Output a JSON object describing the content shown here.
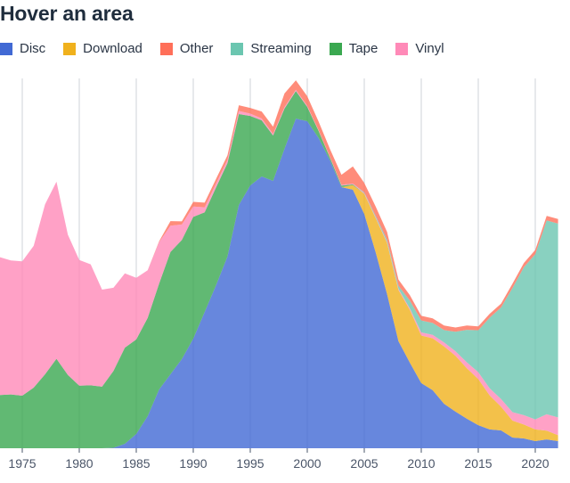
{
  "header": {
    "title": "Hover an area"
  },
  "chart_data": {
    "type": "area",
    "stacked": true,
    "title": "",
    "xlabel": "",
    "ylabel": "",
    "x": [
      1973,
      1974,
      1975,
      1976,
      1977,
      1978,
      1979,
      1980,
      1981,
      1982,
      1983,
      1984,
      1985,
      1986,
      1987,
      1988,
      1989,
      1990,
      1991,
      1992,
      1993,
      1994,
      1995,
      1996,
      1997,
      1998,
      1999,
      2000,
      2001,
      2002,
      2003,
      2004,
      2005,
      2006,
      2007,
      2008,
      2009,
      2010,
      2011,
      2012,
      2013,
      2014,
      2015,
      2016,
      2017,
      2018,
      2019,
      2020,
      2021,
      2022
    ],
    "xticks": [
      "1975",
      "1980",
      "1985",
      "1990",
      "1995",
      "2000",
      "2005",
      "2010",
      "2015",
      "2020"
    ],
    "ylim": [
      0,
      24
    ],
    "grid": "vertical",
    "legend": "top-left",
    "series": [
      {
        "name": "Disc",
        "color": "#4169d4",
        "values": [
          0,
          0,
          0,
          0,
          0,
          0,
          0,
          0,
          0,
          0,
          0.03,
          0.29,
          0.92,
          2.07,
          3.79,
          4.77,
          5.75,
          7.07,
          8.79,
          10.52,
          12.36,
          15.69,
          16.95,
          17.53,
          17.24,
          19.31,
          21.26,
          21.09,
          20.0,
          18.56,
          16.84,
          16.67,
          15.11,
          12.64,
          9.94,
          6.9,
          5.52,
          4.2,
          3.74,
          2.87,
          2.36,
          1.9,
          1.49,
          1.21,
          1.15,
          0.69,
          0.63,
          0.46,
          0.57,
          0.46
        ]
      },
      {
        "name": "Download",
        "color": "#f0b11d",
        "values": [
          0,
          0,
          0,
          0,
          0,
          0,
          0,
          0,
          0,
          0,
          0,
          0,
          0,
          0,
          0,
          0,
          0,
          0,
          0,
          0,
          0,
          0,
          0,
          0,
          0,
          0,
          0,
          0,
          0,
          0,
          0,
          0.3,
          1.3,
          2.2,
          3.3,
          3.3,
          3.4,
          3.07,
          3.35,
          3.7,
          3.6,
          3.26,
          2.97,
          2.2,
          1.53,
          1.09,
          0.9,
          0.75,
          0.57,
          0.38
        ]
      },
      {
        "name": "Tape",
        "color": "#3aa850",
        "values": [
          3.43,
          3.47,
          3.39,
          3.91,
          4.77,
          5.77,
          4.73,
          4.04,
          4.06,
          3.97,
          4.96,
          6.2,
          6.1,
          6.34,
          6.82,
          7.89,
          7.68,
          7.85,
          6.42,
          6.3,
          6.03,
          5.86,
          4.48,
          3.62,
          2.93,
          2.59,
          1.78,
          0.92,
          0.46,
          0.17,
          0.1,
          0.05,
          0,
          0,
          0,
          0,
          0,
          0,
          0,
          0,
          0,
          0,
          0,
          0,
          0,
          0,
          0,
          0,
          0,
          0
        ]
      },
      {
        "name": "Vinyl",
        "color": "#ff8ab8",
        "values": [
          8.9,
          8.64,
          8.66,
          9.14,
          10.96,
          11.42,
          9.04,
          8.1,
          7.8,
          6.26,
          5.36,
          4.79,
          3.97,
          3.07,
          2.68,
          1.69,
          1.0,
          0.67,
          0.33,
          0.25,
          0.2,
          0.2,
          0.15,
          0.12,
          0.1,
          0.1,
          0.08,
          0.07,
          0.05,
          0.05,
          0.05,
          0.05,
          0.05,
          0.05,
          0.06,
          0.08,
          0.1,
          0.2,
          0.22,
          0.25,
          0.3,
          0.38,
          0.45,
          0.45,
          0.5,
          0.55,
          0.6,
          0.65,
          1.05,
          1.15
        ]
      },
      {
        "name": "Streaming",
        "color": "#6bc6b0",
        "values": [
          0,
          0,
          0,
          0,
          0,
          0,
          0,
          0,
          0,
          0,
          0,
          0,
          0,
          0,
          0,
          0,
          0,
          0,
          0,
          0,
          0,
          0,
          0,
          0,
          0,
          0,
          0,
          0,
          0,
          0,
          0,
          0,
          0.05,
          0.1,
          0.15,
          0.2,
          0.5,
          0.77,
          0.77,
          0.8,
          1.25,
          2.1,
          2.7,
          4.56,
          5.9,
          8.0,
          9.54,
          10.65,
          12.5,
          12.5
        ]
      },
      {
        "name": "Other",
        "color": "#ff6f59",
        "values": [
          0,
          0,
          0,
          0,
          0,
          0,
          0,
          0,
          0,
          0,
          0,
          0,
          0,
          0,
          0.05,
          0.3,
          0.2,
          0.3,
          0.3,
          0.3,
          0.3,
          0.37,
          0.37,
          0.45,
          0.47,
          0.88,
          0.61,
          0.62,
          0.55,
          0.5,
          0.65,
          1.1,
          0.6,
          0.6,
          0.5,
          0.4,
          0.35,
          0.3,
          0.3,
          0.3,
          0.28,
          0.28,
          0.25,
          0.25,
          0.25,
          0.28,
          0.28,
          0.28,
          0.3,
          0.3
        ]
      }
    ]
  },
  "legend": [
    {
      "label": "Disc",
      "color": "#4169d4"
    },
    {
      "label": "Download",
      "color": "#f0b11d"
    },
    {
      "label": "Other",
      "color": "#ff6f59"
    },
    {
      "label": "Streaming",
      "color": "#6bc6b0"
    },
    {
      "label": "Tape",
      "color": "#3aa850"
    },
    {
      "label": "Vinyl",
      "color": "#ff8ab8"
    }
  ]
}
